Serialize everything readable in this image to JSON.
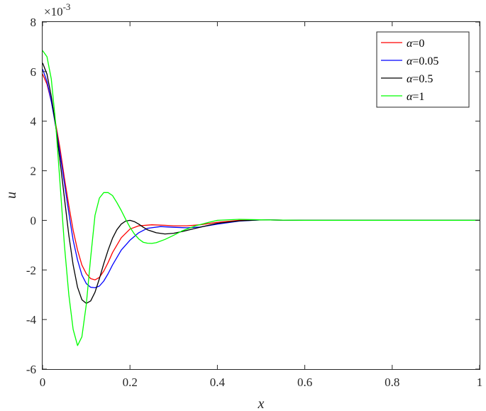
{
  "chart_data": {
    "type": "line",
    "title": "",
    "xlabel": "x",
    "ylabel": "u",
    "xlim": [
      0,
      1
    ],
    "ylim": [
      -6,
      8
    ],
    "y_exponent_label": "×10",
    "y_exponent_power": "-3",
    "xticks": [
      0,
      0.2,
      0.4,
      0.6,
      0.8,
      1
    ],
    "xtick_labels": [
      "0",
      "0.2",
      "0.4",
      "0.6",
      "0.8",
      "1"
    ],
    "yticks": [
      -6,
      -4,
      -2,
      0,
      2,
      4,
      6,
      8
    ],
    "ytick_labels": [
      "-6",
      "-4",
      "-2",
      "0",
      "2",
      "4",
      "6",
      "8"
    ],
    "grid": false,
    "legend_position": "top-right",
    "series": [
      {
        "name": "α=0",
        "legend_symbol": "α",
        "legend_value": "=0",
        "color": "#ff0000",
        "x": [
          0,
          0.01,
          0.02,
          0.03,
          0.04,
          0.05,
          0.06,
          0.07,
          0.08,
          0.09,
          0.1,
          0.11,
          0.12,
          0.13,
          0.14,
          0.15,
          0.16,
          0.18,
          0.2,
          0.22,
          0.25,
          0.28,
          0.3,
          0.33,
          0.36,
          0.4,
          0.45,
          0.5,
          0.55,
          0.6,
          0.7,
          0.8,
          0.9,
          1.0
        ],
        "y": [
          5.9,
          5.5,
          4.8,
          3.9,
          2.9,
          1.7,
          0.6,
          -0.4,
          -1.2,
          -1.8,
          -2.15,
          -2.35,
          -2.4,
          -2.3,
          -2.05,
          -1.7,
          -1.3,
          -0.7,
          -0.35,
          -0.22,
          -0.18,
          -0.2,
          -0.22,
          -0.22,
          -0.18,
          -0.08,
          0.0,
          0.02,
          0.01,
          0.0,
          0.0,
          0.0,
          0.0,
          0.0
        ]
      },
      {
        "name": "α=0.05",
        "legend_symbol": "α",
        "legend_value": "=0.05",
        "color": "#0000ff",
        "x": [
          0,
          0.01,
          0.02,
          0.03,
          0.04,
          0.05,
          0.06,
          0.07,
          0.08,
          0.09,
          0.1,
          0.11,
          0.12,
          0.13,
          0.14,
          0.15,
          0.16,
          0.18,
          0.2,
          0.22,
          0.24,
          0.27,
          0.3,
          0.33,
          0.36,
          0.4,
          0.45,
          0.5,
          0.55,
          0.6,
          0.7,
          0.8,
          0.9,
          1.0
        ],
        "y": [
          6.1,
          5.6,
          4.8,
          3.8,
          2.7,
          1.5,
          0.3,
          -0.8,
          -1.6,
          -2.2,
          -2.55,
          -2.7,
          -2.72,
          -2.65,
          -2.45,
          -2.15,
          -1.8,
          -1.2,
          -0.8,
          -0.5,
          -0.32,
          -0.25,
          -0.28,
          -0.3,
          -0.27,
          -0.15,
          -0.03,
          0.02,
          0.01,
          0.0,
          0.0,
          0.0,
          0.0,
          0.0
        ]
      },
      {
        "name": "α=0.5",
        "legend_symbol": "α",
        "legend_value": "=0.5",
        "color": "#000000",
        "x": [
          0,
          0.01,
          0.02,
          0.03,
          0.04,
          0.05,
          0.06,
          0.07,
          0.08,
          0.09,
          0.1,
          0.11,
          0.12,
          0.13,
          0.14,
          0.15,
          0.16,
          0.17,
          0.18,
          0.19,
          0.2,
          0.21,
          0.22,
          0.23,
          0.24,
          0.26,
          0.28,
          0.3,
          0.32,
          0.35,
          0.38,
          0.4,
          0.45,
          0.5,
          0.55,
          0.6,
          0.7,
          0.8,
          0.9,
          1.0
        ],
        "y": [
          6.35,
          5.9,
          5.0,
          3.8,
          2.4,
          0.9,
          -0.6,
          -1.8,
          -2.7,
          -3.2,
          -3.35,
          -3.25,
          -2.9,
          -2.35,
          -1.75,
          -1.2,
          -0.72,
          -0.38,
          -0.15,
          -0.03,
          0.0,
          -0.05,
          -0.15,
          -0.27,
          -0.38,
          -0.5,
          -0.55,
          -0.52,
          -0.45,
          -0.32,
          -0.2,
          -0.12,
          -0.02,
          0.02,
          0.01,
          0.0,
          0.0,
          0.0,
          0.0,
          0.0
        ]
      },
      {
        "name": "α=1",
        "legend_symbol": "α",
        "legend_value": "=1",
        "color": "#00ff00",
        "x": [
          0,
          0.01,
          0.02,
          0.03,
          0.04,
          0.05,
          0.06,
          0.07,
          0.08,
          0.09,
          0.1,
          0.11,
          0.12,
          0.13,
          0.14,
          0.15,
          0.16,
          0.17,
          0.18,
          0.19,
          0.2,
          0.21,
          0.22,
          0.23,
          0.24,
          0.25,
          0.26,
          0.28,
          0.3,
          0.32,
          0.35,
          0.38,
          0.4,
          0.45,
          0.5,
          0.55,
          0.6,
          0.7,
          0.8,
          0.9,
          1.0
        ],
        "y": [
          6.85,
          6.6,
          5.7,
          3.9,
          1.5,
          -1.0,
          -3.0,
          -4.4,
          -5.05,
          -4.7,
          -3.4,
          -1.5,
          0.2,
          0.9,
          1.12,
          1.12,
          1.0,
          0.72,
          0.4,
          0.05,
          -0.28,
          -0.55,
          -0.75,
          -0.88,
          -0.92,
          -0.93,
          -0.9,
          -0.77,
          -0.6,
          -0.42,
          -0.22,
          -0.08,
          0.0,
          0.04,
          0.02,
          0.01,
          0.0,
          0.0,
          0.0,
          0.0,
          0.0
        ]
      }
    ]
  }
}
